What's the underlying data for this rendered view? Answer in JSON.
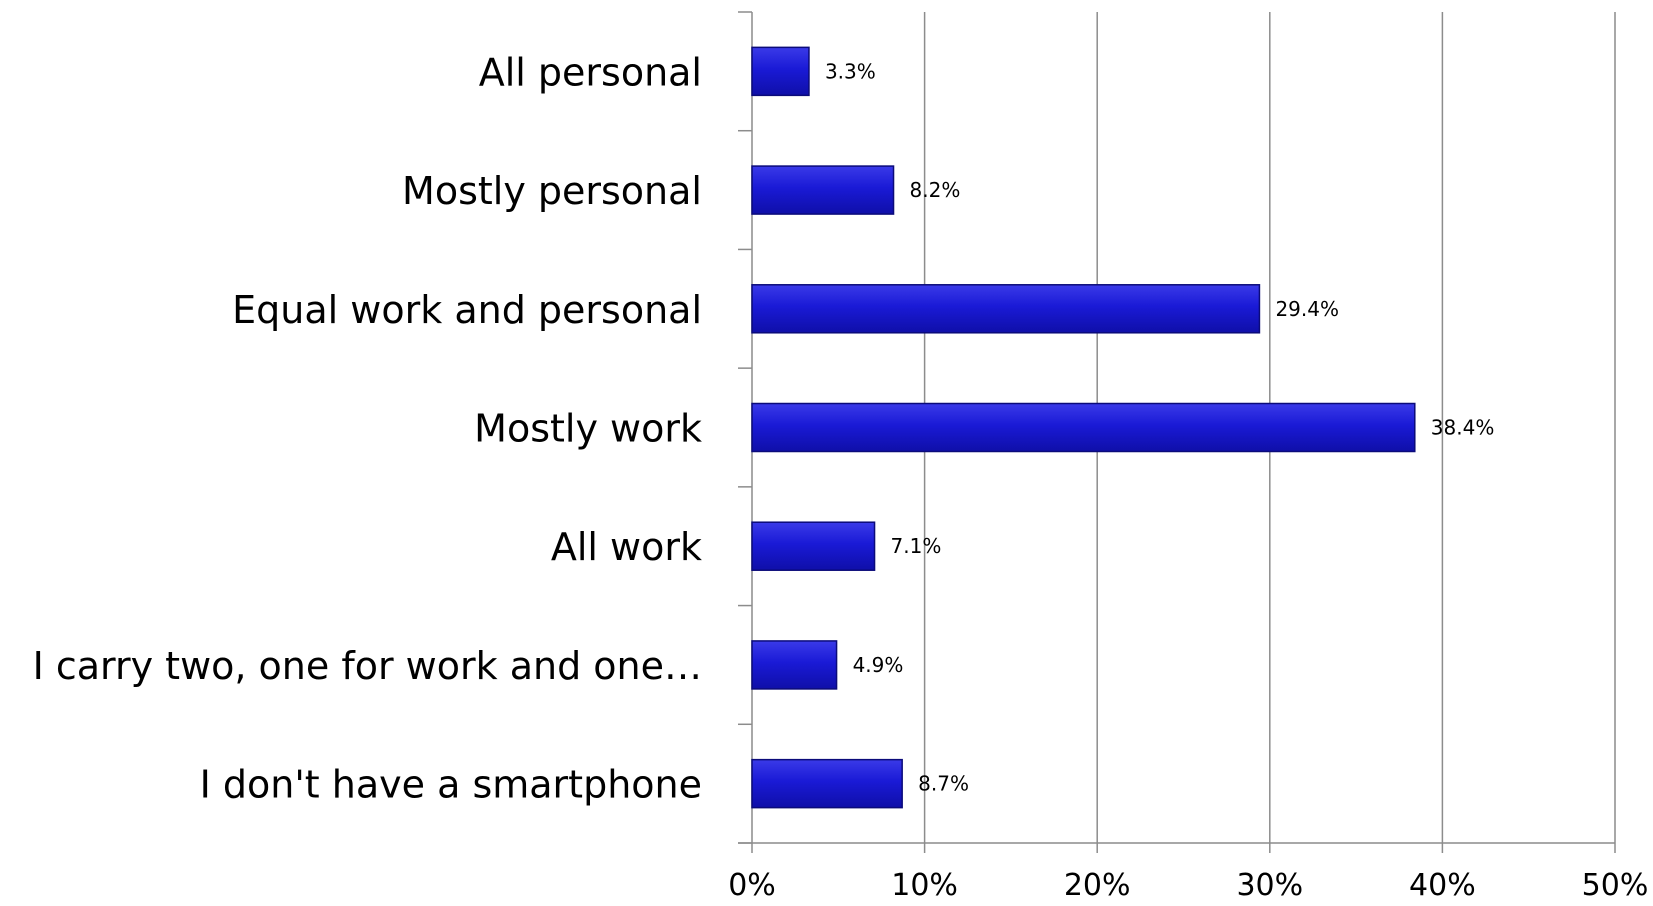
{
  "chart_data": {
    "type": "bar",
    "orientation": "horizontal",
    "categories": [
      "All personal",
      "Mostly personal",
      "Equal work and personal",
      "Mostly work",
      "All work",
      "I carry two, one for work and one…",
      "I don't have a smartphone"
    ],
    "values": [
      3.3,
      8.2,
      29.4,
      38.4,
      7.1,
      4.9,
      8.7
    ],
    "data_labels": [
      "3.3%",
      "8.2%",
      "29.4%",
      "38.4%",
      "7.1%",
      "4.9%",
      "8.7%"
    ],
    "xlim": [
      0,
      50
    ],
    "x_ticks": [
      0,
      10,
      20,
      30,
      40,
      50
    ],
    "x_tick_labels": [
      "0%",
      "10%",
      "20%",
      "30%",
      "40%",
      "50%"
    ],
    "title": "",
    "xlabel": "",
    "ylabel": "",
    "grid": true,
    "legend": false,
    "bar_color": "#1a1ad6",
    "bar_edge_color": "#0b0b7a"
  }
}
